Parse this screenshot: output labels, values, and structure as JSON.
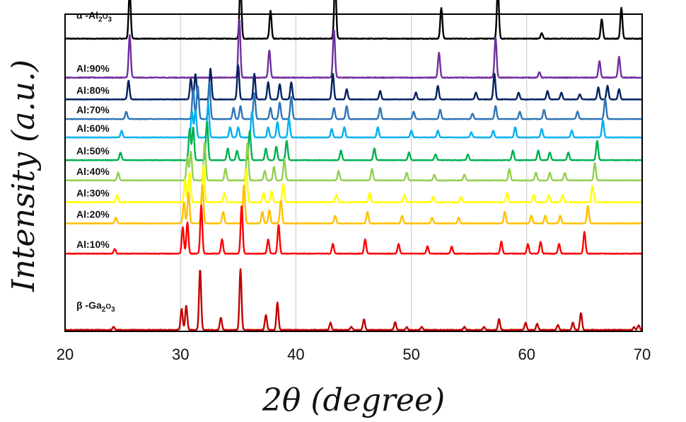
{
  "chart_data": {
    "type": "line",
    "title": "",
    "xlabel": "2θ (degree)",
    "xlabel_prefix": "2",
    "xlabel_theta": "θ",
    "xlabel_rest": " (degree)",
    "ylabel": "Intensity (a.u.)",
    "xlim": [
      20,
      70
    ],
    "x_ticks": [
      20,
      30,
      40,
      50,
      60,
      70
    ],
    "x_tick_labels": [
      "20",
      "30",
      "40",
      "50",
      "60",
      "70"
    ],
    "grid": "vertical gridlines at 30, 40, 50, 60",
    "legend": "inline labels at left of each trace",
    "y_ticks": [],
    "series": [
      {
        "name": "α -Al2O3",
        "label_parts": {
          "prefix": "α -Al",
          "sub1": "2",
          "mid": "O",
          "sub2": "3"
        },
        "color": "#000000",
        "baseline": 0.935,
        "scale": 0.18,
        "peaks": [
          [
            25.6,
            0.88
          ],
          [
            35.2,
            1.0
          ],
          [
            37.8,
            0.5
          ],
          [
            43.4,
            1.05
          ],
          [
            52.6,
            0.55
          ],
          [
            57.5,
            0.9
          ],
          [
            61.3,
            0.1
          ],
          [
            66.5,
            0.35
          ],
          [
            68.2,
            0.55
          ]
        ]
      },
      {
        "name": "Al:90%",
        "color": "#7030A0",
        "baseline": 0.81,
        "scale": 0.19,
        "peaks": [
          [
            25.6,
            0.72
          ],
          [
            35.1,
            1.0
          ],
          [
            37.7,
            0.47
          ],
          [
            43.3,
            0.82
          ],
          [
            52.4,
            0.42
          ],
          [
            57.3,
            0.68
          ],
          [
            61.1,
            0.09
          ],
          [
            66.3,
            0.28
          ],
          [
            68.0,
            0.35
          ]
        ]
      },
      {
        "name": "Al:80%",
        "color": "#002060",
        "baseline": 0.74,
        "scale": 0.11,
        "peaks": [
          [
            25.5,
            0.55
          ],
          [
            30.9,
            0.6
          ],
          [
            31.3,
            0.75
          ],
          [
            32.6,
            0.9
          ],
          [
            35.0,
            1.0
          ],
          [
            36.4,
            0.75
          ],
          [
            37.6,
            0.5
          ],
          [
            38.6,
            0.45
          ],
          [
            39.6,
            0.5
          ],
          [
            43.2,
            0.75
          ],
          [
            44.4,
            0.3
          ],
          [
            47.3,
            0.25
          ],
          [
            50.4,
            0.2
          ],
          [
            52.3,
            0.4
          ],
          [
            55.6,
            0.2
          ],
          [
            57.2,
            0.75
          ],
          [
            59.3,
            0.2
          ],
          [
            61.8,
            0.25
          ],
          [
            63.0,
            0.2
          ],
          [
            64.6,
            0.15
          ],
          [
            66.2,
            0.35
          ],
          [
            67.0,
            0.4
          ],
          [
            68.0,
            0.3
          ]
        ]
      },
      {
        "name": "Al:70%",
        "color": "#2E75B6",
        "baseline": 0.677,
        "scale": 0.12,
        "peaks": [
          [
            25.3,
            0.2
          ],
          [
            31.1,
            0.8
          ],
          [
            31.5,
            0.9
          ],
          [
            32.5,
            1.0
          ],
          [
            34.6,
            0.3
          ],
          [
            35.2,
            0.35
          ],
          [
            36.4,
            0.7
          ],
          [
            37.8,
            0.3
          ],
          [
            38.6,
            0.45
          ],
          [
            39.6,
            0.6
          ],
          [
            43.3,
            0.3
          ],
          [
            44.4,
            0.35
          ],
          [
            47.3,
            0.3
          ],
          [
            50.2,
            0.2
          ],
          [
            52.5,
            0.25
          ],
          [
            55.3,
            0.15
          ],
          [
            57.3,
            0.35
          ],
          [
            59.4,
            0.2
          ],
          [
            61.5,
            0.25
          ],
          [
            64.4,
            0.2
          ],
          [
            66.8,
            0.55
          ]
        ]
      },
      {
        "name": "Al:60%",
        "color": "#00B0F0",
        "baseline": 0.618,
        "scale": 0.11,
        "peaks": [
          [
            24.9,
            0.2
          ],
          [
            31.0,
            0.75
          ],
          [
            31.3,
            0.8
          ],
          [
            32.4,
            1.0
          ],
          [
            34.3,
            0.3
          ],
          [
            35.0,
            0.3
          ],
          [
            36.2,
            0.75
          ],
          [
            37.6,
            0.3
          ],
          [
            38.4,
            0.45
          ],
          [
            39.4,
            0.55
          ],
          [
            43.1,
            0.25
          ],
          [
            44.2,
            0.3
          ],
          [
            47.1,
            0.3
          ],
          [
            50.0,
            0.2
          ],
          [
            52.3,
            0.2
          ],
          [
            55.2,
            0.15
          ],
          [
            57.1,
            0.2
          ],
          [
            59.0,
            0.3
          ],
          [
            61.3,
            0.25
          ],
          [
            63.9,
            0.2
          ],
          [
            66.6,
            0.5
          ]
        ]
      },
      {
        "name": "Al:50%",
        "color": "#00B050",
        "baseline": 0.545,
        "scale": 0.125,
        "peaks": [
          [
            24.8,
            0.2
          ],
          [
            30.8,
            0.8
          ],
          [
            31.1,
            0.85
          ],
          [
            32.3,
            1.0
          ],
          [
            34.1,
            0.3
          ],
          [
            34.9,
            0.25
          ],
          [
            36.0,
            0.75
          ],
          [
            37.4,
            0.3
          ],
          [
            38.3,
            0.35
          ],
          [
            39.2,
            0.5
          ],
          [
            43.9,
            0.25
          ],
          [
            46.8,
            0.3
          ],
          [
            49.8,
            0.2
          ],
          [
            52.1,
            0.15
          ],
          [
            54.9,
            0.15
          ],
          [
            58.8,
            0.25
          ],
          [
            61.0,
            0.25
          ],
          [
            62.0,
            0.2
          ],
          [
            63.6,
            0.2
          ],
          [
            66.1,
            0.5
          ]
        ]
      },
      {
        "name": "Al:40%",
        "color": "#92D050",
        "baseline": 0.48,
        "scale": 0.125,
        "peaks": [
          [
            24.6,
            0.2
          ],
          [
            30.6,
            0.6
          ],
          [
            30.9,
            0.75
          ],
          [
            32.1,
            1.0
          ],
          [
            33.9,
            0.3
          ],
          [
            35.8,
            0.95
          ],
          [
            37.3,
            0.25
          ],
          [
            38.1,
            0.35
          ],
          [
            39.0,
            0.55
          ],
          [
            43.7,
            0.25
          ],
          [
            46.6,
            0.3
          ],
          [
            49.6,
            0.2
          ],
          [
            52.0,
            0.15
          ],
          [
            54.6,
            0.15
          ],
          [
            58.5,
            0.3
          ],
          [
            60.8,
            0.2
          ],
          [
            62.0,
            0.2
          ],
          [
            63.3,
            0.2
          ],
          [
            65.9,
            0.45
          ]
        ]
      },
      {
        "name": "Al:30%",
        "color": "#FFFF00",
        "baseline": 0.41,
        "scale": 0.12,
        "peaks": [
          [
            24.5,
            0.2
          ],
          [
            30.4,
            0.6
          ],
          [
            30.8,
            0.8
          ],
          [
            32.0,
            1.0
          ],
          [
            33.8,
            0.25
          ],
          [
            35.7,
            0.9
          ],
          [
            37.2,
            0.25
          ],
          [
            37.9,
            0.3
          ],
          [
            38.9,
            0.5
          ],
          [
            43.5,
            0.2
          ],
          [
            46.4,
            0.25
          ],
          [
            49.4,
            0.2
          ],
          [
            51.9,
            0.15
          ],
          [
            54.3,
            0.15
          ],
          [
            58.3,
            0.25
          ],
          [
            60.6,
            0.2
          ],
          [
            61.9,
            0.2
          ],
          [
            63.1,
            0.2
          ],
          [
            65.7,
            0.45
          ]
        ]
      },
      {
        "name": "Al:20%",
        "color": "#FFC000",
        "baseline": 0.342,
        "scale": 0.125,
        "peaks": [
          [
            24.4,
            0.15
          ],
          [
            30.3,
            0.55
          ],
          [
            30.7,
            0.8
          ],
          [
            31.9,
            1.0
          ],
          [
            33.7,
            0.3
          ],
          [
            35.5,
            1.0
          ],
          [
            37.1,
            0.3
          ],
          [
            37.7,
            0.35
          ],
          [
            38.7,
            0.6
          ],
          [
            43.4,
            0.2
          ],
          [
            46.2,
            0.3
          ],
          [
            49.2,
            0.2
          ],
          [
            51.8,
            0.15
          ],
          [
            54.1,
            0.15
          ],
          [
            58.1,
            0.3
          ],
          [
            60.4,
            0.2
          ],
          [
            61.6,
            0.2
          ],
          [
            62.9,
            0.2
          ],
          [
            65.3,
            0.45
          ]
        ]
      },
      {
        "name": "Al:10%",
        "color": "#FF0000",
        "baseline": 0.245,
        "scale": 0.155,
        "peaks": [
          [
            24.3,
            0.1
          ],
          [
            30.2,
            0.55
          ],
          [
            30.6,
            0.65
          ],
          [
            31.8,
            1.0
          ],
          [
            33.6,
            0.3
          ],
          [
            35.3,
            1.0
          ],
          [
            37.6,
            0.3
          ],
          [
            38.5,
            0.6
          ],
          [
            43.2,
            0.2
          ],
          [
            46.0,
            0.3
          ],
          [
            48.9,
            0.2
          ],
          [
            51.4,
            0.15
          ],
          [
            53.5,
            0.15
          ],
          [
            57.8,
            0.25
          ],
          [
            60.1,
            0.2
          ],
          [
            61.2,
            0.25
          ],
          [
            62.8,
            0.2
          ],
          [
            65.0,
            0.45
          ]
        ]
      },
      {
        "name": "β -Ga2O3",
        "label_parts": {
          "prefix": "β -Ga",
          "sub1": "2",
          "mid": "O",
          "sub2": "3"
        },
        "color": "#C00000",
        "baseline": 0.0,
        "scale": 0.195,
        "peaks": [
          [
            24.2,
            0.05
          ],
          [
            30.1,
            0.35
          ],
          [
            30.5,
            0.4
          ],
          [
            31.7,
            1.0
          ],
          [
            33.5,
            0.2
          ],
          [
            35.2,
            1.0
          ],
          [
            37.4,
            0.25
          ],
          [
            38.4,
            0.45
          ],
          [
            43.0,
            0.12
          ],
          [
            44.8,
            0.05
          ],
          [
            45.9,
            0.18
          ],
          [
            48.6,
            0.13
          ],
          [
            49.6,
            0.05
          ],
          [
            50.9,
            0.05
          ],
          [
            54.6,
            0.05
          ],
          [
            56.3,
            0.05
          ],
          [
            57.6,
            0.18
          ],
          [
            59.9,
            0.12
          ],
          [
            60.9,
            0.1
          ],
          [
            62.7,
            0.08
          ],
          [
            64.0,
            0.12
          ],
          [
            64.7,
            0.28
          ],
          [
            69.3,
            0.05
          ],
          [
            69.7,
            0.08
          ]
        ]
      }
    ]
  }
}
